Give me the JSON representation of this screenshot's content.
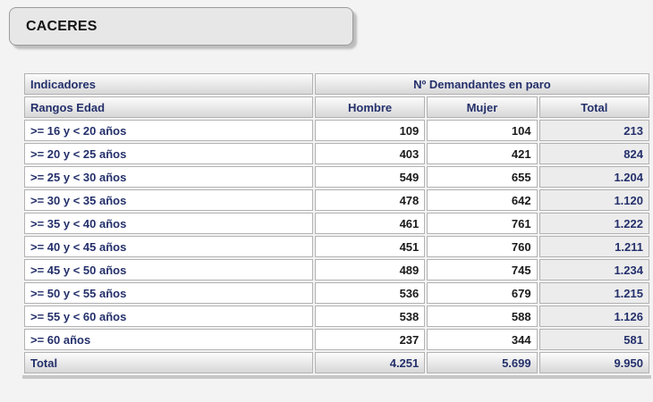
{
  "header": {
    "title": "CACERES"
  },
  "table": {
    "header": {
      "indicadores": "Indicadores",
      "group": "Nº Demandantes en paro"
    },
    "subheader": {
      "rangos": "Rangos Edad",
      "hombre": "Hombre",
      "mujer": "Mujer",
      "total": "Total"
    },
    "rows": [
      {
        "label": ">= 16 y < 20 años",
        "hombre": "109",
        "mujer": "104",
        "total": "213"
      },
      {
        "label": ">= 20 y < 25 años",
        "hombre": "403",
        "mujer": "421",
        "total": "824"
      },
      {
        "label": ">= 25 y < 30 años",
        "hombre": "549",
        "mujer": "655",
        "total": "1.204"
      },
      {
        "label": ">= 30 y < 35 años",
        "hombre": "478",
        "mujer": "642",
        "total": "1.120"
      },
      {
        "label": ">= 35 y < 40 años",
        "hombre": "461",
        "mujer": "761",
        "total": "1.222"
      },
      {
        "label": ">= 40 y < 45 años",
        "hombre": "451",
        "mujer": "760",
        "total": "1.211"
      },
      {
        "label": ">= 45 y < 50 años",
        "hombre": "489",
        "mujer": "745",
        "total": "1.234"
      },
      {
        "label": ">= 50 y < 55 años",
        "hombre": "536",
        "mujer": "679",
        "total": "1.215"
      },
      {
        "label": ">= 55 y < 60 años",
        "hombre": "538",
        "mujer": "588",
        "total": "1.126"
      },
      {
        "label": ">= 60 años",
        "hombre": "237",
        "mujer": "344",
        "total": "581"
      }
    ],
    "footer": {
      "label": "Total",
      "hombre": "4.251",
      "mujer": "5.699",
      "total": "9.950"
    }
  },
  "colors": {
    "navy": "#24306b",
    "num-black": "#1a1a1a",
    "border": "#b2b2b2",
    "total-bg": "#ececec",
    "page-bg": "#f3f3f3",
    "grad-top": "#fcfcfc",
    "grad-bottom": "#d7d7d7",
    "title-bg": "#e7e7e7",
    "title-border": "#9b9b9b",
    "shadow": "#bdbdbd"
  }
}
